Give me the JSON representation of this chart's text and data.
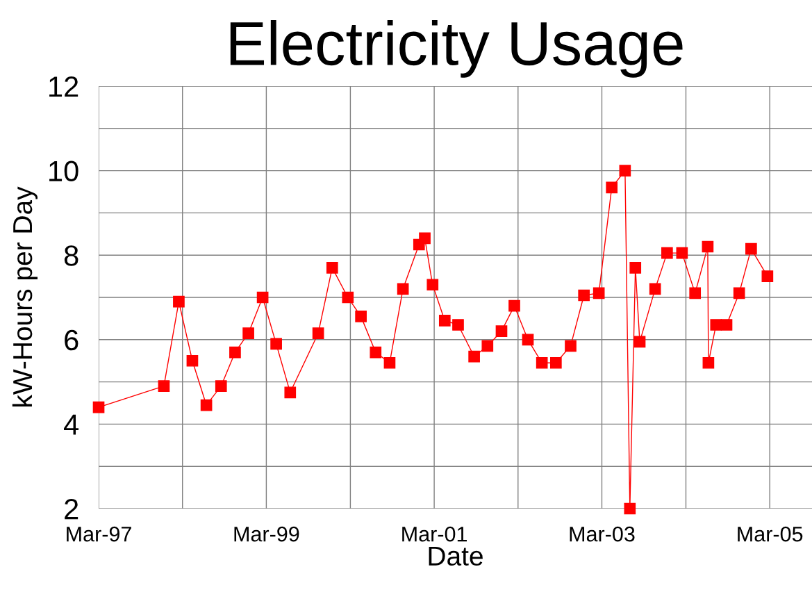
{
  "chart_data": {
    "type": "line",
    "title": "Electricity Usage",
    "xlabel": "Date",
    "ylabel": "kW-Hours per Day",
    "series": [
      {
        "color": "#ff0000",
        "x": [
          "1997-03-01",
          "1997-12-10",
          "1998-02-13",
          "1998-04-13",
          "1998-06-13",
          "1998-08-16",
          "1998-10-16",
          "1998-12-13",
          "1999-02-13",
          "1999-04-13",
          "1999-06-13",
          "1999-10-13",
          "1999-12-13",
          "2000-02-19",
          "2000-04-16",
          "2000-06-19",
          "2000-08-19",
          "2000-10-16",
          "2000-12-25",
          "2001-01-19",
          "2001-02-22",
          "2001-04-16",
          "2001-06-13",
          "2001-08-22",
          "2001-10-19",
          "2001-12-19",
          "2002-02-13",
          "2002-04-13",
          "2002-06-13",
          "2002-08-13",
          "2002-10-16",
          "2002-12-13",
          "2003-02-16",
          "2003-04-13",
          "2003-06-10",
          "2003-07-01",
          "2003-07-25",
          "2003-08-13",
          "2003-10-19",
          "2003-12-10",
          "2004-02-13",
          "2004-04-10",
          "2004-06-04",
          "2004-06-07",
          "2004-07-10",
          "2004-08-25",
          "2004-10-19",
          "2004-12-10",
          "2005-02-19"
        ],
        "values": [
          4.4,
          4.9,
          6.9,
          5.5,
          4.45,
          4.9,
          5.7,
          6.15,
          7.0,
          5.9,
          4.75,
          6.15,
          7.7,
          7.0,
          6.55,
          5.7,
          5.45,
          7.2,
          8.25,
          8.4,
          7.3,
          6.45,
          6.35,
          5.6,
          5.85,
          6.2,
          6.8,
          6.0,
          5.45,
          5.45,
          5.85,
          7.05,
          7.1,
          9.6,
          10.0,
          2.0,
          7.7,
          5.95,
          7.2,
          8.05,
          8.05,
          7.1,
          8.2,
          5.45,
          6.35,
          6.35,
          7.1,
          8.15,
          7.5
        ]
      }
    ],
    "xlim": [
      "1997-03-01",
      "2005-09-01"
    ],
    "xticks": [
      {
        "value": "1997-03-01",
        "label": "Mar-97"
      },
      {
        "value": "1998-03-01",
        "label": null
      },
      {
        "value": "1999-03-01",
        "label": "Mar-99"
      },
      {
        "value": "2000-03-01",
        "label": null
      },
      {
        "value": "2001-03-01",
        "label": "Mar-01"
      },
      {
        "value": "2002-03-01",
        "label": null
      },
      {
        "value": "2003-03-01",
        "label": "Mar-03"
      },
      {
        "value": "2004-03-01",
        "label": null
      },
      {
        "value": "2005-03-01",
        "label": "Mar-05"
      }
    ],
    "ylim": [
      2,
      12
    ],
    "yticks": [
      2,
      {
        "value": 3,
        "label": null
      },
      4,
      {
        "value": 5,
        "label": null
      },
      6,
      {
        "value": 7,
        "label": null
      },
      8,
      {
        "value": 9,
        "label": null
      },
      10,
      {
        "value": 11,
        "label": null
      },
      12
    ],
    "grid": true,
    "marker": "square",
    "line_style": "solid"
  }
}
